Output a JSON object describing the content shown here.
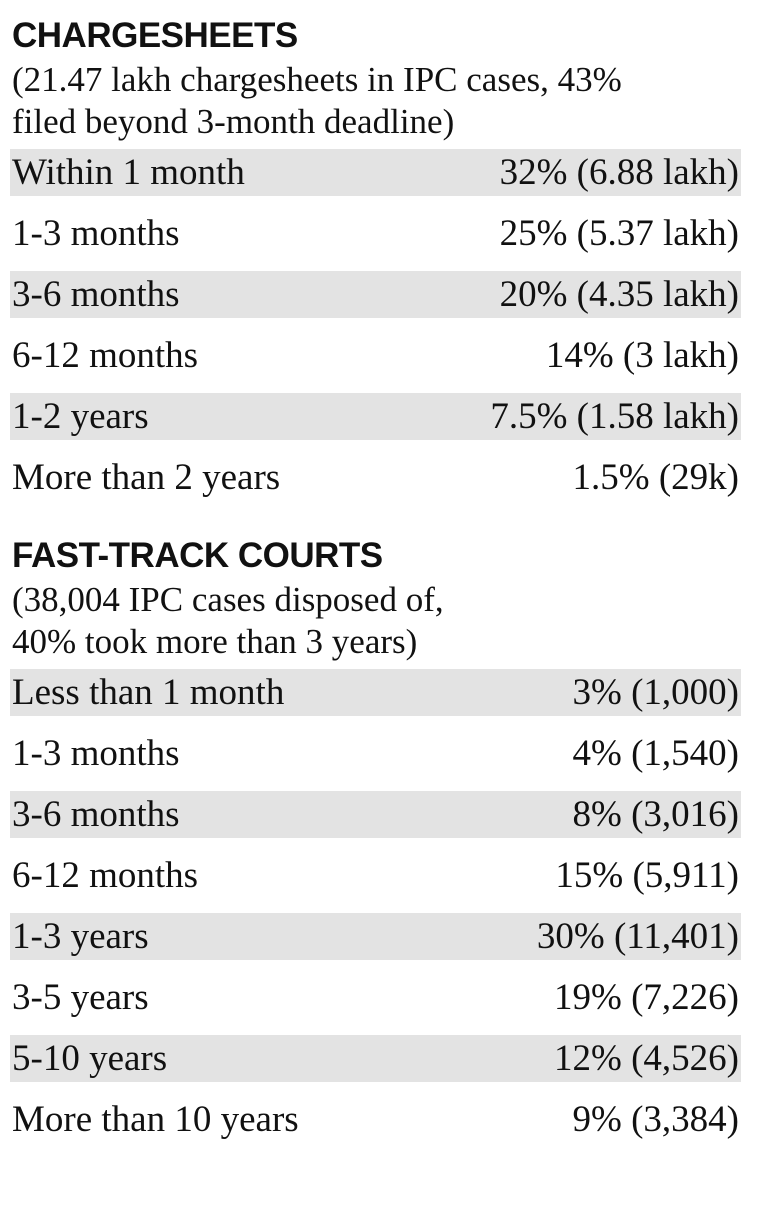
{
  "sections": [
    {
      "title": "CHARGESHEETS",
      "subtitle_line1": "(21.47 lakh chargesheets in IPC cases, 43%",
      "subtitle_line2": "filed beyond 3-month deadline)",
      "rows": [
        {
          "label": "Within 1 month",
          "value": "32% (6.88 lakh)"
        },
        {
          "label": "1-3 months",
          "value": "25% (5.37 lakh)"
        },
        {
          "label": "3-6 months",
          "value": "20% (4.35 lakh)"
        },
        {
          "label": "6-12 months",
          "value": "14% (3 lakh)"
        },
        {
          "label": "1-2 years",
          "value": "7.5% (1.58 lakh)"
        },
        {
          "label": "More than 2 years",
          "value": "1.5% (29k)"
        }
      ]
    },
    {
      "title": "FAST-TRACK COURTS",
      "subtitle_line1": "(38,004 IPC cases disposed of,",
      "subtitle_line2": "40% took more than 3 years)",
      "rows": [
        {
          "label": "Less than 1 month",
          "value": "3% (1,000)"
        },
        {
          "label": "1-3 months",
          "value": "4% (1,540)"
        },
        {
          "label": "3-6 months",
          "value": "8% (3,016)"
        },
        {
          "label": "6-12 months",
          "value": "15% (5,911)"
        },
        {
          "label": "1-3 years",
          "value": "30% (11,401)"
        },
        {
          "label": "3-5 years",
          "value": "19% (7,226)"
        },
        {
          "label": "5-10 years",
          "value": "12% (4,526)"
        },
        {
          "label": "More than 10 years",
          "value": "9% (3,384)"
        }
      ]
    }
  ],
  "chart_data": [
    {
      "type": "table",
      "title": "CHARGESHEETS",
      "subtitle": "(21.47 lakh chargesheets in IPC cases, 43% filed beyond 3-month deadline)",
      "categories": [
        "Within 1 month",
        "1-3 months",
        "3-6 months",
        "6-12 months",
        "1-2 years",
        "More than 2 years"
      ],
      "percent": [
        32,
        25,
        20,
        14,
        7.5,
        1.5
      ],
      "counts": [
        "6.88 lakh",
        "5.37 lakh",
        "4.35 lakh",
        "3 lakh",
        "1.58 lakh",
        "29k"
      ]
    },
    {
      "type": "table",
      "title": "FAST-TRACK COURTS",
      "subtitle": "(38,004 IPC cases disposed of, 40% took more than 3 years)",
      "categories": [
        "Less than 1 month",
        "1-3 months",
        "3-6 months",
        "6-12 months",
        "1-3 years",
        "3-5 years",
        "5-10 years",
        "More than 10 years"
      ],
      "percent": [
        3,
        4,
        8,
        15,
        30,
        19,
        12,
        9
      ],
      "counts": [
        "1,000",
        "1,540",
        "3,016",
        "5,911",
        "11,401",
        "7,226",
        "4,526",
        "3,384"
      ]
    }
  ]
}
